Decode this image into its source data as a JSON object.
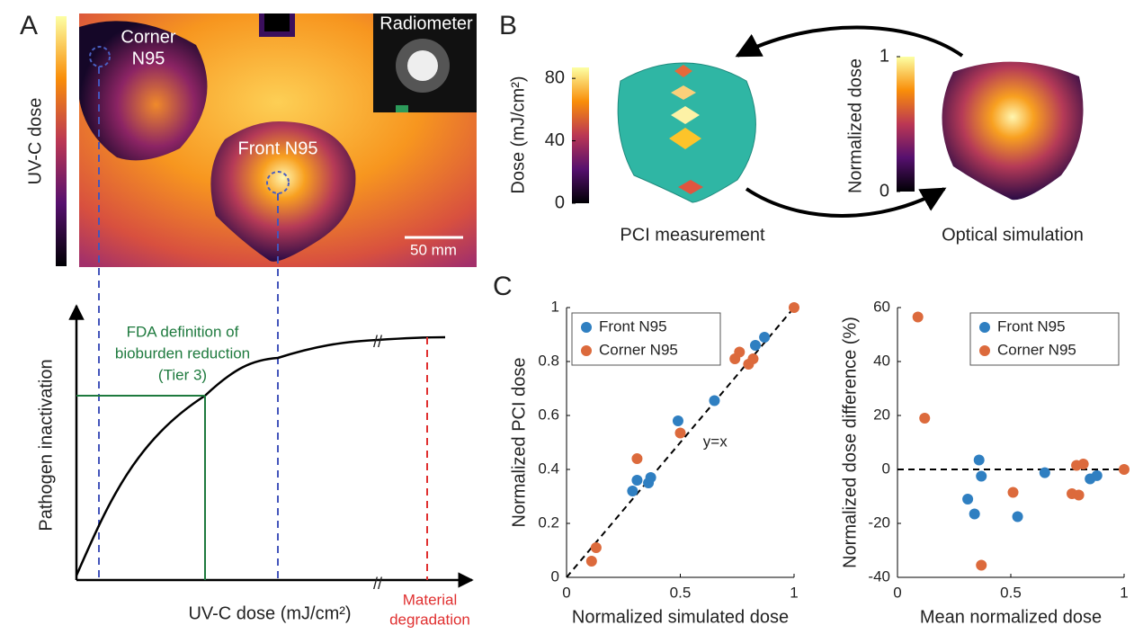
{
  "panel_labels": [
    "A",
    "B",
    "C"
  ],
  "panel_a": {
    "colorbar_label": "UV-C dose",
    "corner_label": [
      "Corner",
      "N95"
    ],
    "front_label": "Front N95",
    "radiometer_label": "Radiometer",
    "scale_bar": "50 mm",
    "curve_y_label": "Pathogen inactivation",
    "curve_x_label": "UV-C dose (mJ/cm²)",
    "fda_label": [
      "FDA definition of",
      "bioburden reduction",
      "(Tier 3)"
    ],
    "degradation_label": [
      "Material",
      "degradation"
    ]
  },
  "panel_b": {
    "dose_colorbar": {
      "label": "Dose (mJ/cm²)",
      "clim": [
        0,
        87
      ],
      "ticks": [
        0,
        40,
        80
      ]
    },
    "norm_colorbar": {
      "label": "Normalized dose",
      "clim": [
        0,
        1
      ],
      "ticks": [
        0,
        1
      ]
    },
    "pci_label": "PCI measurement",
    "sim_label": "Optical simulation"
  },
  "chart_data": [
    {
      "type": "scatter",
      "xlabel": "Normalized simulated dose",
      "ylabel": "Normalized PCI dose",
      "annotation": "y=x",
      "legend": "upper-left",
      "xlim": [
        0,
        1
      ],
      "ylim": [
        0,
        1
      ],
      "xticks": [
        0,
        0.5,
        1
      ],
      "yticks": [
        0,
        0.2,
        0.4,
        0.6,
        0.8,
        1
      ],
      "series": [
        {
          "name": "Front N95",
          "color": "#2f7fc1",
          "x": [
            0.29,
            0.31,
            0.36,
            0.37,
            0.49,
            0.65,
            0.83,
            0.87
          ],
          "values": [
            0.32,
            0.36,
            0.35,
            0.37,
            0.58,
            0.655,
            0.86,
            0.89
          ]
        },
        {
          "name": "Corner N95",
          "color": "#dc6a3c",
          "x": [
            0.11,
            0.13,
            0.31,
            0.5,
            0.74,
            0.76,
            0.8,
            0.82,
            1
          ],
          "values": [
            0.06,
            0.11,
            0.44,
            0.535,
            0.81,
            0.835,
            0.79,
            0.81,
            1
          ]
        }
      ]
    },
    {
      "type": "scatter",
      "xlabel": "Mean normalized dose",
      "ylabel": "Normalized dose difference (%)",
      "legend": "upper-right",
      "xlim": [
        0,
        1
      ],
      "ylim": [
        -40,
        60
      ],
      "xticks": [
        0,
        0.5,
        1
      ],
      "yticks": [
        -40,
        -20,
        0,
        20,
        40,
        60
      ],
      "series": [
        {
          "name": "Front N95",
          "color": "#2f7fc1",
          "x": [
            0.31,
            0.34,
            0.36,
            0.37,
            0.53,
            0.65,
            0.85,
            0.88
          ],
          "values": [
            -11,
            -16.5,
            3.5,
            -2.5,
            -17.5,
            -1.2,
            -3.5,
            -2.3
          ]
        },
        {
          "name": "Corner N95",
          "color": "#dc6a3c",
          "x": [
            0.09,
            0.12,
            0.37,
            0.51,
            0.77,
            0.79,
            0.8,
            0.82,
            1
          ],
          "values": [
            56.5,
            19,
            -35.5,
            -8.5,
            -9,
            1.5,
            -9.5,
            2,
            0
          ]
        }
      ]
    }
  ]
}
